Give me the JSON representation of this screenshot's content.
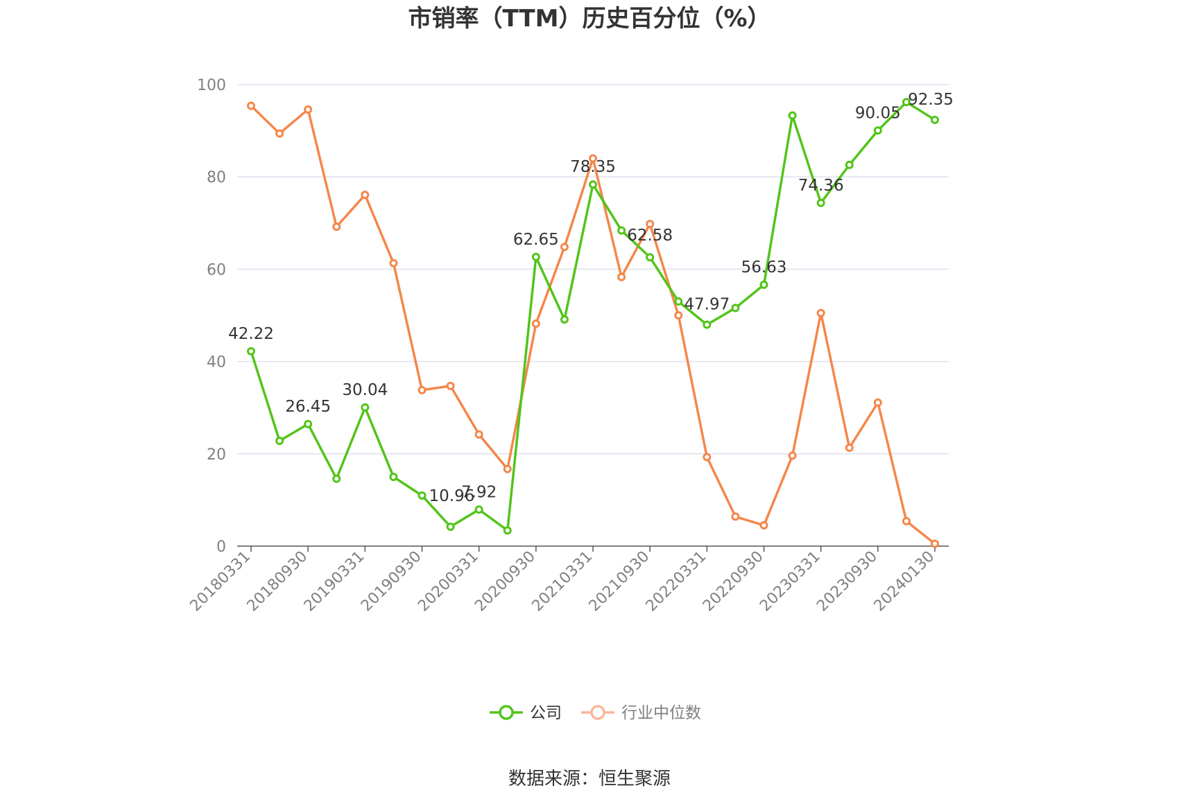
{
  "chart_data": {
    "type": "line",
    "title": "市销率（TTM）历史百分位（%）",
    "source": "数据来源：恒生聚源",
    "ylim": [
      0,
      100
    ],
    "yticks": [
      0,
      20,
      40,
      60,
      80,
      100
    ],
    "grid": true,
    "legend_position": "bottom-center",
    "x_tick_labels": [
      "20180331",
      "20180930",
      "20190331",
      "20190930",
      "20200331",
      "20200930",
      "20210331",
      "20210930",
      "20220331",
      "20220930",
      "20230331",
      "20230930",
      "20240130"
    ],
    "x": [
      "20180331",
      "20180630",
      "20180930",
      "20181231",
      "20190331",
      "20190630",
      "20190930",
      "20191231",
      "20200331",
      "20200630",
      "20200930",
      "20201231",
      "20210331",
      "20210630",
      "20210930",
      "20211231",
      "20220331",
      "20220630",
      "20220930",
      "20221231",
      "20230331",
      "20230630",
      "20230930",
      "20231231",
      "20240130"
    ],
    "series": [
      {
        "name": "公司",
        "color": "#52c41a",
        "values": [
          42.22,
          22.8,
          26.45,
          14.6,
          30.04,
          15.0,
          10.96,
          4.2,
          7.92,
          3.4,
          62.65,
          49.1,
          78.35,
          68.4,
          62.58,
          53.0,
          47.97,
          51.6,
          56.63,
          93.3,
          74.36,
          82.6,
          90.05,
          96.2,
          92.35
        ],
        "labels": {
          "0": "42.22",
          "2": "26.45",
          "4": "30.04",
          "6": "10.96",
          "8": "7.92",
          "10": "62.65",
          "12": "78.35",
          "14": "62.58",
          "16": "47.97",
          "18": "56.63",
          "20": "74.36",
          "22": "90.05",
          "24": "92.35"
        }
      },
      {
        "name": "行业中位数",
        "color": "#f4874b",
        "values": [
          95.4,
          89.4,
          94.6,
          69.2,
          76.1,
          61.3,
          33.8,
          34.7,
          24.2,
          16.7,
          48.2,
          64.8,
          84.0,
          58.3,
          69.8,
          50.0,
          19.3,
          6.4,
          4.5,
          19.6,
          50.5,
          21.3,
          31.1,
          5.4,
          0.5
        ]
      }
    ]
  }
}
